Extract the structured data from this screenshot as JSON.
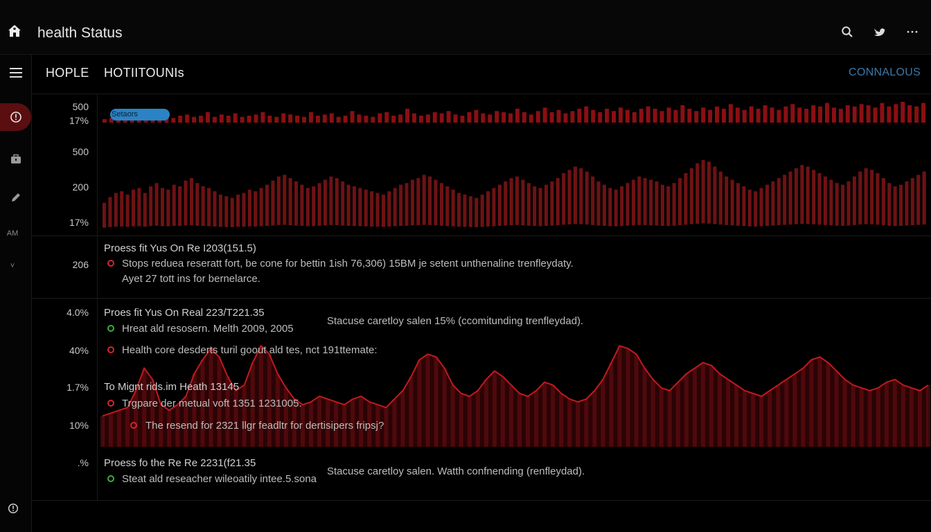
{
  "topbar": {
    "title": "health Status",
    "icons": [
      "home-icon",
      "search-icon",
      "bird-icon",
      "more-icon"
    ]
  },
  "header": {
    "label_left": "HOPLE",
    "label_right": "HOTIITOUNIs",
    "link": "CONNALOUS"
  },
  "sidebar": {
    "items": [
      {
        "icon": "menu-icon"
      },
      {
        "icon": "alert-circle-icon",
        "active": true
      },
      {
        "icon": "briefcase-icon"
      },
      {
        "icon": "pencil-icon"
      },
      {
        "label": "AM"
      },
      {
        "label": "˅"
      },
      {
        "icon": "info-icon"
      }
    ]
  },
  "y_labels": [
    "500",
    "17%",
    "500",
    "200",
    "17%",
    "206",
    "4.0%",
    "40%",
    "1.7%",
    "10%",
    ".%"
  ],
  "badge": "Setaors",
  "rows": {
    "r1_title": "Proess fit Yus On Re I203(151.5)",
    "r1_line1": "Stops reduea reseratt fort, be cone for bettin 1ish 76,306) 15BM je setent unthenaline trenfleydaty.",
    "r1_line2": "Ayet 27 tott ins for bernelarce.",
    "r2_title": "Proes fit Yus On Real 223/T221.35",
    "r2_line1": "Hreat ald resosern. Melth 2009, 2005",
    "r2_side": "Stacuse caretloy salen 15% (ccomitunding trenfleydad).",
    "r2_line2": "Health core desderts turil goout ald tes, nct 191ttemate:",
    "r3_title": "To Mignt rids.im Heath 13145",
    "r3_line1": "Trgpare der metual voft 1351 1231005.",
    "r3_line2": "The resend for 2321 llgr feadltr for dertisipers fripsj?",
    "r4_title": "Proess fo the Re Re 2231(f21.35",
    "r4_line1": "Steat ald reseacher wileoatily intee.5.sona",
    "r4_side": "Stacuse caretloy salen. Watth confnending (renfleydad)."
  },
  "chart_data": [
    {
      "type": "bar",
      "title": "Setaors",
      "ylabel_ticks": [
        "500",
        "17%"
      ],
      "values": [
        3,
        4,
        5,
        4,
        6,
        5,
        7,
        6,
        5,
        8,
        4,
        6,
        7,
        5,
        6,
        9,
        5,
        7,
        6,
        8,
        5,
        6,
        7,
        9,
        6,
        5,
        8,
        7,
        6,
        5,
        9,
        6,
        7,
        8,
        5,
        6,
        10,
        7,
        6,
        5,
        8,
        9,
        6,
        7,
        12,
        8,
        6,
        7,
        9,
        8,
        10,
        7,
        6,
        9,
        11,
        8,
        7,
        10,
        9,
        8,
        12,
        9,
        7,
        10,
        13,
        9,
        11,
        8,
        10,
        12,
        14,
        11,
        9,
        12,
        10,
        13,
        11,
        9,
        12,
        14,
        12,
        10,
        13,
        11,
        15,
        12,
        10,
        13,
        11,
        14,
        12,
        16,
        13,
        11,
        14,
        12,
        15,
        13,
        11,
        14,
        16,
        13,
        12,
        15,
        14,
        17,
        13,
        12,
        15,
        14,
        16,
        15,
        13,
        17,
        14,
        16,
        18,
        15,
        14,
        17
      ],
      "color": "#8b0f12"
    },
    {
      "type": "bar",
      "ylabel_ticks": [
        "500",
        "200",
        "17%"
      ],
      "values": [
        28,
        35,
        40,
        42,
        38,
        44,
        46,
        40,
        48,
        52,
        46,
        44,
        50,
        48,
        55,
        58,
        52,
        48,
        46,
        42,
        38,
        36,
        34,
        38,
        40,
        44,
        42,
        46,
        50,
        55,
        60,
        62,
        58,
        54,
        50,
        46,
        48,
        52,
        56,
        60,
        58,
        54,
        50,
        48,
        46,
        44,
        42,
        40,
        38,
        42,
        46,
        50,
        52,
        56,
        58,
        62,
        60,
        56,
        52,
        48,
        44,
        40,
        38,
        36,
        34,
        38,
        42,
        46,
        50,
        54,
        58,
        60,
        56,
        52,
        48,
        46,
        50,
        54,
        58,
        64,
        68,
        72,
        70,
        66,
        60,
        54,
        50,
        46,
        44,
        48,
        52,
        56,
        60,
        58,
        56,
        54,
        50,
        48,
        52,
        58,
        64,
        70,
        76,
        80,
        78,
        72,
        66,
        60,
        56,
        52,
        48,
        44,
        42,
        46,
        50,
        54,
        58,
        62,
        66,
        70,
        74,
        72,
        68,
        64,
        60,
        56,
        52,
        50,
        54,
        60,
        66,
        70,
        68,
        64,
        58,
        52,
        48,
        50,
        54,
        58,
        62,
        66
      ],
      "color": "#6e1214"
    },
    {
      "type": "area",
      "ylabel_ticks": [
        "4.0%",
        "40%",
        "1.7%",
        "10%"
      ],
      "values": [
        22,
        24,
        26,
        28,
        40,
        56,
        48,
        30,
        26,
        30,
        36,
        52,
        62,
        70,
        64,
        50,
        40,
        44,
        60,
        72,
        66,
        52,
        42,
        34,
        30,
        32,
        36,
        34,
        32,
        30,
        34,
        36,
        32,
        30,
        28,
        34,
        40,
        50,
        62,
        66,
        64,
        56,
        44,
        38,
        36,
        40,
        48,
        54,
        50,
        44,
        38,
        36,
        40,
        46,
        44,
        38,
        34,
        32,
        34,
        40,
        48,
        60,
        72,
        70,
        66,
        56,
        48,
        42,
        40,
        46,
        52,
        56,
        60,
        58,
        52,
        48,
        44,
        40,
        38,
        36,
        40,
        44,
        48,
        52,
        56,
        62,
        64,
        60,
        54,
        48,
        44,
        42,
        40,
        42,
        46,
        48,
        44,
        42,
        40,
        44
      ],
      "color": "#c21a1f"
    }
  ]
}
